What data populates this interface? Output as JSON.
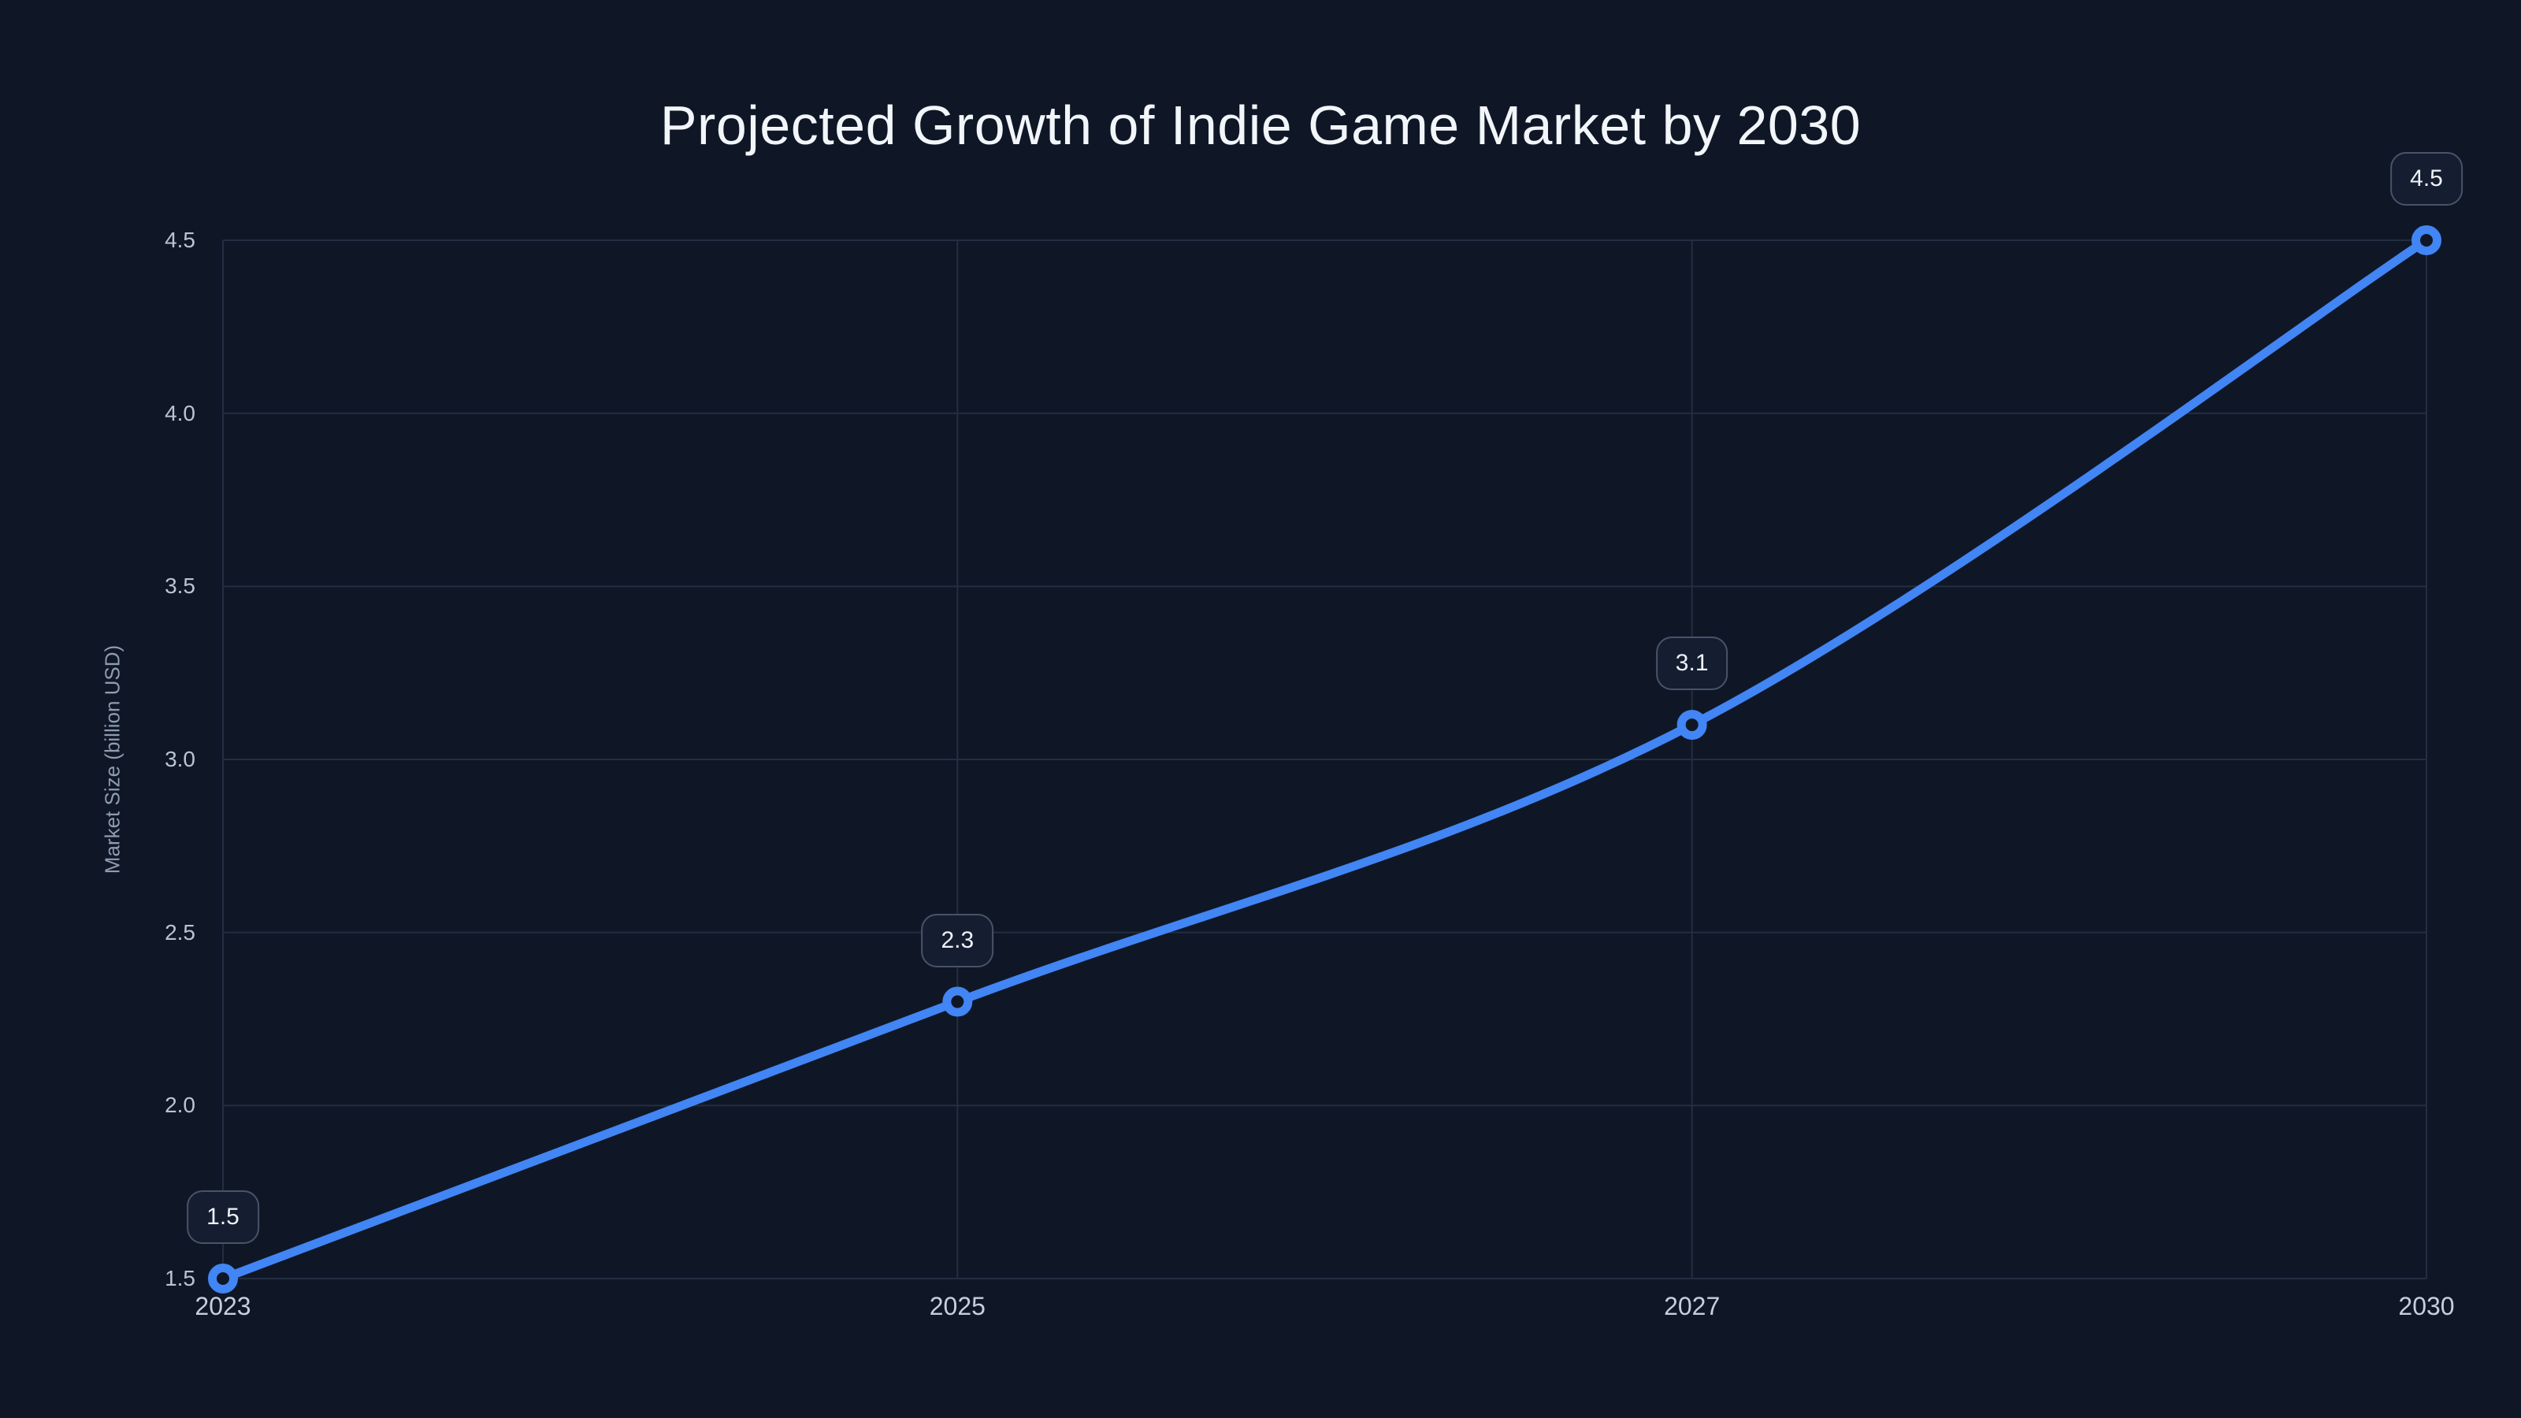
{
  "chart_data": {
    "type": "line",
    "title": "Projected Growth of Indie Game Market by 2030",
    "xlabel": "",
    "ylabel": "Market Size (billion USD)",
    "categories": [
      "2023",
      "2025",
      "2027",
      "2030"
    ],
    "series": [
      {
        "name": "Market Size (billion USD)",
        "values": [
          1.5,
          2.3,
          3.1,
          4.5
        ]
      }
    ],
    "point_labels": [
      "1.5",
      "2.3",
      "3.1",
      "4.5"
    ],
    "ytick_values": [
      1.5,
      2.0,
      2.5,
      3.0,
      3.5,
      4.0,
      4.5
    ],
    "ytick_labels": [
      "1.5",
      "2.0",
      "2.5",
      "3.0",
      "3.5",
      "4.0",
      "4.5"
    ],
    "ylim": [
      1.5,
      4.5
    ],
    "grid": true,
    "legend": "none",
    "line_interpolation": "smooth",
    "marker_style": "hollow-circle"
  },
  "colors": {
    "background": "#0f1726",
    "line": "#4285f4",
    "grid": "#232e42",
    "title_text": "#f2f6fa",
    "ytick_text": "#b9c4d3",
    "xtick_text": "#c6cfdc",
    "axis_title_text": "#8f9cb0",
    "badge_background": "#151d31",
    "badge_border": "#48536a",
    "badge_text": "#eef2f8",
    "marker_fill": "#0f1726"
  }
}
